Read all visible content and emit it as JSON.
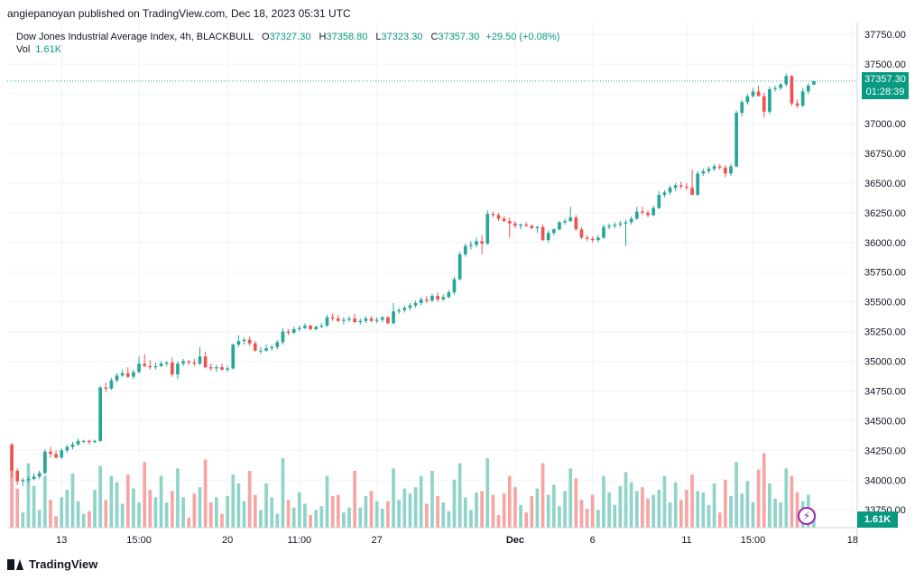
{
  "publisher": "angiepanoyan published on TradingView.com, Dec 18, 2023 05:31 UTC",
  "legend": {
    "symbol": "Dow Jones Industrial Average Index, 4h, BLACKBULL",
    "o_label": "O",
    "o_value": "37327.30",
    "h_label": "H",
    "h_value": "37358.80",
    "l_label": "L",
    "l_value": "37323.30",
    "c_label": "C",
    "c_value": "37357.30",
    "change": "+29.50 (+0.08%)"
  },
  "vol_legend": {
    "label": "Vol",
    "value": "1.61K"
  },
  "last_price": {
    "price": "37357.30",
    "countdown": "01:28:39"
  },
  "vol_last": "1.61K",
  "footer_logo": "TradingView",
  "colors": {
    "up": "#26a69a",
    "down": "#ef5350",
    "up_vol": "#8fd3c9",
    "down_vol": "#f7a5a3",
    "accent": "#089981",
    "grid": "#f0f3fa"
  },
  "chart_data": {
    "type": "candlestick",
    "symbol": "Dow Jones Industrial Average Index",
    "interval": "4h",
    "ylim": [
      33600,
      37850
    ],
    "yticks": [
      33750,
      34000,
      34250,
      34500,
      34750,
      35000,
      35250,
      35500,
      35750,
      36000,
      36250,
      36500,
      36750,
      37000,
      37250,
      37500,
      37750
    ],
    "ytick_labels": [
      "33750.00",
      "34000.00",
      "34250.00",
      "34500.00",
      "34750.00",
      "35000.00",
      "35250.00",
      "35500.00",
      "35750.00",
      "36000.00",
      "36250.00",
      "36500.00",
      "36750.00",
      "37000.00",
      "37250.00",
      "37500.00",
      "37750.00"
    ],
    "xtick_labels": [
      "13",
      "15:00",
      "20",
      "11:00",
      "27",
      "Dec",
      "6",
      "11",
      "15:00",
      "18"
    ],
    "xtick_bar_index": [
      9,
      23,
      39,
      52,
      66,
      91,
      105,
      122,
      134,
      152
    ],
    "vol_max": 1.0,
    "candles": [
      {
        "o": 34300,
        "h": 34310,
        "l": 34020,
        "c": 34080,
        "v": 0.53
      },
      {
        "o": 34080,
        "h": 34100,
        "l": 33960,
        "c": 33990,
        "v": 0.31
      },
      {
        "o": 33990,
        "h": 34020,
        "l": 33950,
        "c": 34000,
        "v": 0.12
      },
      {
        "o": 34000,
        "h": 34030,
        "l": 33980,
        "c": 34010,
        "v": 0.51
      },
      {
        "o": 34010,
        "h": 34060,
        "l": 34000,
        "c": 34030,
        "v": 0.33
      },
      {
        "o": 34030,
        "h": 34080,
        "l": 34010,
        "c": 34060,
        "v": 0.14
      },
      {
        "o": 34060,
        "h": 34260,
        "l": 34050,
        "c": 34240,
        "v": 0.41
      },
      {
        "o": 34240,
        "h": 34280,
        "l": 34190,
        "c": 34220,
        "v": 0.22
      },
      {
        "o": 34220,
        "h": 34250,
        "l": 34180,
        "c": 34190,
        "v": 0.09
      },
      {
        "o": 34190,
        "h": 34270,
        "l": 34180,
        "c": 34250,
        "v": 0.24
      },
      {
        "o": 34250,
        "h": 34300,
        "l": 34230,
        "c": 34280,
        "v": 0.3
      },
      {
        "o": 34280,
        "h": 34320,
        "l": 34260,
        "c": 34300,
        "v": 0.43
      },
      {
        "o": 34300,
        "h": 34350,
        "l": 34290,
        "c": 34330,
        "v": 0.21
      },
      {
        "o": 34330,
        "h": 34340,
        "l": 34310,
        "c": 34330,
        "v": 0.11
      },
      {
        "o": 34330,
        "h": 34340,
        "l": 34300,
        "c": 34320,
        "v": 0.13
      },
      {
        "o": 34320,
        "h": 34340,
        "l": 34310,
        "c": 34330,
        "v": 0.3
      },
      {
        "o": 34330,
        "h": 34790,
        "l": 34320,
        "c": 34780,
        "v": 0.49
      },
      {
        "o": 34780,
        "h": 34820,
        "l": 34740,
        "c": 34770,
        "v": 0.22
      },
      {
        "o": 34770,
        "h": 34860,
        "l": 34760,
        "c": 34840,
        "v": 0.41
      },
      {
        "o": 34840,
        "h": 34900,
        "l": 34820,
        "c": 34880,
        "v": 0.36
      },
      {
        "o": 34880,
        "h": 34930,
        "l": 34870,
        "c": 34900,
        "v": 0.19
      },
      {
        "o": 34900,
        "h": 34950,
        "l": 34860,
        "c": 34870,
        "v": 0.42
      },
      {
        "o": 34870,
        "h": 34930,
        "l": 34850,
        "c": 34910,
        "v": 0.31
      },
      {
        "o": 34910,
        "h": 35040,
        "l": 34900,
        "c": 34980,
        "v": 0.2
      },
      {
        "o": 34980,
        "h": 35060,
        "l": 34950,
        "c": 34960,
        "v": 0.52
      },
      {
        "o": 34960,
        "h": 35010,
        "l": 34930,
        "c": 34950,
        "v": 0.3
      },
      {
        "o": 34950,
        "h": 34990,
        "l": 34930,
        "c": 34960,
        "v": 0.24
      },
      {
        "o": 34960,
        "h": 35000,
        "l": 34950,
        "c": 34980,
        "v": 0.41
      },
      {
        "o": 34980,
        "h": 35000,
        "l": 34960,
        "c": 34990,
        "v": 0.2
      },
      {
        "o": 34990,
        "h": 35030,
        "l": 34870,
        "c": 34890,
        "v": 0.29
      },
      {
        "o": 34890,
        "h": 35000,
        "l": 34850,
        "c": 34980,
        "v": 0.47
      },
      {
        "o": 34980,
        "h": 35020,
        "l": 34960,
        "c": 35000,
        "v": 0.24
      },
      {
        "o": 35000,
        "h": 35010,
        "l": 34970,
        "c": 34990,
        "v": 0.08
      },
      {
        "o": 34990,
        "h": 35020,
        "l": 34960,
        "c": 34980,
        "v": 0.27
      },
      {
        "o": 34980,
        "h": 35120,
        "l": 34970,
        "c": 35040,
        "v": 0.32
      },
      {
        "o": 35040,
        "h": 35080,
        "l": 34940,
        "c": 34950,
        "v": 0.54
      },
      {
        "o": 34950,
        "h": 34980,
        "l": 34920,
        "c": 34940,
        "v": 0.2
      },
      {
        "o": 34940,
        "h": 34970,
        "l": 34910,
        "c": 34950,
        "v": 0.24
      },
      {
        "o": 34950,
        "h": 34980,
        "l": 34920,
        "c": 34930,
        "v": 0.11
      },
      {
        "o": 34930,
        "h": 34960,
        "l": 34910,
        "c": 34940,
        "v": 0.25
      },
      {
        "o": 34940,
        "h": 35150,
        "l": 34930,
        "c": 35140,
        "v": 0.42
      },
      {
        "o": 35140,
        "h": 35220,
        "l": 35120,
        "c": 35170,
        "v": 0.35
      },
      {
        "o": 35170,
        "h": 35200,
        "l": 35140,
        "c": 35180,
        "v": 0.21
      },
      {
        "o": 35180,
        "h": 35210,
        "l": 35130,
        "c": 35150,
        "v": 0.45
      },
      {
        "o": 35150,
        "h": 35170,
        "l": 35080,
        "c": 35090,
        "v": 0.26
      },
      {
        "o": 35090,
        "h": 35120,
        "l": 35060,
        "c": 35090,
        "v": 0.14
      },
      {
        "o": 35090,
        "h": 35140,
        "l": 35080,
        "c": 35110,
        "v": 0.35
      },
      {
        "o": 35110,
        "h": 35140,
        "l": 35090,
        "c": 35120,
        "v": 0.24
      },
      {
        "o": 35120,
        "h": 35180,
        "l": 35100,
        "c": 35160,
        "v": 0.11
      },
      {
        "o": 35160,
        "h": 35280,
        "l": 35140,
        "c": 35250,
        "v": 0.55
      },
      {
        "o": 35250,
        "h": 35270,
        "l": 35220,
        "c": 35240,
        "v": 0.22
      },
      {
        "o": 35240,
        "h": 35290,
        "l": 35230,
        "c": 35270,
        "v": 0.16
      },
      {
        "o": 35270,
        "h": 35300,
        "l": 35250,
        "c": 35280,
        "v": 0.28
      },
      {
        "o": 35280,
        "h": 35320,
        "l": 35270,
        "c": 35300,
        "v": 0.19
      },
      {
        "o": 35300,
        "h": 35310,
        "l": 35260,
        "c": 35270,
        "v": 0.1
      },
      {
        "o": 35270,
        "h": 35300,
        "l": 35260,
        "c": 35290,
        "v": 0.14
      },
      {
        "o": 35290,
        "h": 35320,
        "l": 35280,
        "c": 35300,
        "v": 0.17
      },
      {
        "o": 35300,
        "h": 35390,
        "l": 35290,
        "c": 35370,
        "v": 0.41
      },
      {
        "o": 35370,
        "h": 35400,
        "l": 35340,
        "c": 35360,
        "v": 0.25
      },
      {
        "o": 35360,
        "h": 35390,
        "l": 35330,
        "c": 35340,
        "v": 0.26
      },
      {
        "o": 35340,
        "h": 35370,
        "l": 35310,
        "c": 35350,
        "v": 0.12
      },
      {
        "o": 35350,
        "h": 35380,
        "l": 35330,
        "c": 35360,
        "v": 0.16
      },
      {
        "o": 35360,
        "h": 35400,
        "l": 35320,
        "c": 35330,
        "v": 0.45
      },
      {
        "o": 35330,
        "h": 35360,
        "l": 35310,
        "c": 35340,
        "v": 0.16
      },
      {
        "o": 35340,
        "h": 35380,
        "l": 35320,
        "c": 35360,
        "v": 0.25
      },
      {
        "o": 35360,
        "h": 35380,
        "l": 35330,
        "c": 35340,
        "v": 0.29
      },
      {
        "o": 35340,
        "h": 35370,
        "l": 35320,
        "c": 35350,
        "v": 0.21
      },
      {
        "o": 35350,
        "h": 35380,
        "l": 35330,
        "c": 35370,
        "v": 0.15
      },
      {
        "o": 35370,
        "h": 35380,
        "l": 35310,
        "c": 35320,
        "v": 0.21
      },
      {
        "o": 35320,
        "h": 35490,
        "l": 35310,
        "c": 35420,
        "v": 0.47
      },
      {
        "o": 35420,
        "h": 35450,
        "l": 35400,
        "c": 35430,
        "v": 0.22
      },
      {
        "o": 35430,
        "h": 35470,
        "l": 35410,
        "c": 35450,
        "v": 0.31
      },
      {
        "o": 35450,
        "h": 35490,
        "l": 35430,
        "c": 35470,
        "v": 0.27
      },
      {
        "o": 35470,
        "h": 35510,
        "l": 35450,
        "c": 35490,
        "v": 0.32
      },
      {
        "o": 35490,
        "h": 35540,
        "l": 35470,
        "c": 35520,
        "v": 0.41
      },
      {
        "o": 35520,
        "h": 35550,
        "l": 35490,
        "c": 35510,
        "v": 0.19
      },
      {
        "o": 35510,
        "h": 35570,
        "l": 35500,
        "c": 35550,
        "v": 0.45
      },
      {
        "o": 35550,
        "h": 35580,
        "l": 35500,
        "c": 35520,
        "v": 0.25
      },
      {
        "o": 35520,
        "h": 35560,
        "l": 35510,
        "c": 35540,
        "v": 0.2
      },
      {
        "o": 35540,
        "h": 35600,
        "l": 35530,
        "c": 35580,
        "v": 0.13
      },
      {
        "o": 35580,
        "h": 35710,
        "l": 35560,
        "c": 35690,
        "v": 0.38
      },
      {
        "o": 35690,
        "h": 35920,
        "l": 35680,
        "c": 35900,
        "v": 0.51
      },
      {
        "o": 35900,
        "h": 35990,
        "l": 35880,
        "c": 35970,
        "v": 0.24
      },
      {
        "o": 35970,
        "h": 36010,
        "l": 35940,
        "c": 35980,
        "v": 0.14
      },
      {
        "o": 35980,
        "h": 36040,
        "l": 35960,
        "c": 36010,
        "v": 0.28
      },
      {
        "o": 36010,
        "h": 36060,
        "l": 35900,
        "c": 35990,
        "v": 0.29
      },
      {
        "o": 35990,
        "h": 36270,
        "l": 35980,
        "c": 36240,
        "v": 0.55
      },
      {
        "o": 36240,
        "h": 36260,
        "l": 36210,
        "c": 36230,
        "v": 0.26
      },
      {
        "o": 36230,
        "h": 36250,
        "l": 36180,
        "c": 36200,
        "v": 0.1
      },
      {
        "o": 36200,
        "h": 36220,
        "l": 36170,
        "c": 36180,
        "v": 0.27
      },
      {
        "o": 36180,
        "h": 36210,
        "l": 36040,
        "c": 36160,
        "v": 0.41
      },
      {
        "o": 36160,
        "h": 36180,
        "l": 36120,
        "c": 36140,
        "v": 0.32
      },
      {
        "o": 36140,
        "h": 36160,
        "l": 36110,
        "c": 36150,
        "v": 0.18
      },
      {
        "o": 36150,
        "h": 36170,
        "l": 36130,
        "c": 36140,
        "v": 0.12
      },
      {
        "o": 36140,
        "h": 36150,
        "l": 36110,
        "c": 36120,
        "v": 0.25
      },
      {
        "o": 36120,
        "h": 36140,
        "l": 36080,
        "c": 36130,
        "v": 0.31
      },
      {
        "o": 36130,
        "h": 36150,
        "l": 36010,
        "c": 36020,
        "v": 0.51
      },
      {
        "o": 36020,
        "h": 36100,
        "l": 36000,
        "c": 36080,
        "v": 0.26
      },
      {
        "o": 36080,
        "h": 36120,
        "l": 36060,
        "c": 36110,
        "v": 0.34
      },
      {
        "o": 36110,
        "h": 36180,
        "l": 36100,
        "c": 36170,
        "v": 0.17
      },
      {
        "o": 36170,
        "h": 36200,
        "l": 36150,
        "c": 36180,
        "v": 0.29
      },
      {
        "o": 36180,
        "h": 36300,
        "l": 36170,
        "c": 36210,
        "v": 0.47
      },
      {
        "o": 36210,
        "h": 36230,
        "l": 36100,
        "c": 36110,
        "v": 0.39
      },
      {
        "o": 36110,
        "h": 36130,
        "l": 36030,
        "c": 36040,
        "v": 0.22
      },
      {
        "o": 36040,
        "h": 36060,
        "l": 36010,
        "c": 36030,
        "v": 0.15
      },
      {
        "o": 36030,
        "h": 36050,
        "l": 36000,
        "c": 36020,
        "v": 0.26
      },
      {
        "o": 36020,
        "h": 36060,
        "l": 36000,
        "c": 36040,
        "v": 0.14
      },
      {
        "o": 36040,
        "h": 36150,
        "l": 36030,
        "c": 36130,
        "v": 0.41
      },
      {
        "o": 36130,
        "h": 36160,
        "l": 36110,
        "c": 36140,
        "v": 0.28
      },
      {
        "o": 36140,
        "h": 36170,
        "l": 36120,
        "c": 36150,
        "v": 0.18
      },
      {
        "o": 36150,
        "h": 36180,
        "l": 36130,
        "c": 36160,
        "v": 0.33
      },
      {
        "o": 36160,
        "h": 36190,
        "l": 35970,
        "c": 36170,
        "v": 0.44
      },
      {
        "o": 36170,
        "h": 36220,
        "l": 36150,
        "c": 36200,
        "v": 0.36
      },
      {
        "o": 36200,
        "h": 36300,
        "l": 36190,
        "c": 36260,
        "v": 0.29
      },
      {
        "o": 36260,
        "h": 36300,
        "l": 36230,
        "c": 36250,
        "v": 0.32
      },
      {
        "o": 36250,
        "h": 36270,
        "l": 36210,
        "c": 36230,
        "v": 0.23
      },
      {
        "o": 36230,
        "h": 36310,
        "l": 36220,
        "c": 36290,
        "v": 0.26
      },
      {
        "o": 36290,
        "h": 36430,
        "l": 36280,
        "c": 36400,
        "v": 0.3
      },
      {
        "o": 36400,
        "h": 36440,
        "l": 36380,
        "c": 36420,
        "v": 0.41
      },
      {
        "o": 36420,
        "h": 36480,
        "l": 36400,
        "c": 36460,
        "v": 0.2
      },
      {
        "o": 36460,
        "h": 36500,
        "l": 36430,
        "c": 36480,
        "v": 0.36
      },
      {
        "o": 36480,
        "h": 36510,
        "l": 36450,
        "c": 36470,
        "v": 0.22
      },
      {
        "o": 36470,
        "h": 36500,
        "l": 36440,
        "c": 36460,
        "v": 0.3
      },
      {
        "o": 36460,
        "h": 36610,
        "l": 36440,
        "c": 36400,
        "v": 0.42
      },
      {
        "o": 36400,
        "h": 36600,
        "l": 36390,
        "c": 36580,
        "v": 0.29
      },
      {
        "o": 36580,
        "h": 36620,
        "l": 36560,
        "c": 36600,
        "v": 0.28
      },
      {
        "o": 36600,
        "h": 36640,
        "l": 36580,
        "c": 36620,
        "v": 0.18
      },
      {
        "o": 36620,
        "h": 36660,
        "l": 36600,
        "c": 36640,
        "v": 0.35
      },
      {
        "o": 36640,
        "h": 36660,
        "l": 36610,
        "c": 36630,
        "v": 0.12
      },
      {
        "o": 36630,
        "h": 36650,
        "l": 36550,
        "c": 36580,
        "v": 0.38
      },
      {
        "o": 36580,
        "h": 36660,
        "l": 36560,
        "c": 36640,
        "v": 0.25
      },
      {
        "o": 36640,
        "h": 37110,
        "l": 36630,
        "c": 37090,
        "v": 0.52
      },
      {
        "o": 37090,
        "h": 37200,
        "l": 37060,
        "c": 37180,
        "v": 0.27
      },
      {
        "o": 37180,
        "h": 37250,
        "l": 37160,
        "c": 37230,
        "v": 0.37
      },
      {
        "o": 37230,
        "h": 37300,
        "l": 37220,
        "c": 37270,
        "v": 0.2
      },
      {
        "o": 37270,
        "h": 37320,
        "l": 37240,
        "c": 37230,
        "v": 0.46
      },
      {
        "o": 37230,
        "h": 37260,
        "l": 37050,
        "c": 37100,
        "v": 0.59
      },
      {
        "o": 37100,
        "h": 37310,
        "l": 37080,
        "c": 37290,
        "v": 0.35
      },
      {
        "o": 37290,
        "h": 37320,
        "l": 37270,
        "c": 37300,
        "v": 0.23
      },
      {
        "o": 37300,
        "h": 37340,
        "l": 37280,
        "c": 37330,
        "v": 0.2
      },
      {
        "o": 37330,
        "h": 37420,
        "l": 37310,
        "c": 37400,
        "v": 0.47
      },
      {
        "o": 37400,
        "h": 37410,
        "l": 37150,
        "c": 37170,
        "v": 0.41
      },
      {
        "o": 37170,
        "h": 37200,
        "l": 37130,
        "c": 37150,
        "v": 0.28
      },
      {
        "o": 37150,
        "h": 37300,
        "l": 37140,
        "c": 37270,
        "v": 0.21
      },
      {
        "o": 37270,
        "h": 37340,
        "l": 37250,
        "c": 37320,
        "v": 0.26
      },
      {
        "o": 37327.3,
        "h": 37358.8,
        "l": 37323.3,
        "c": 37357.3,
        "v": 0.1
      }
    ]
  }
}
